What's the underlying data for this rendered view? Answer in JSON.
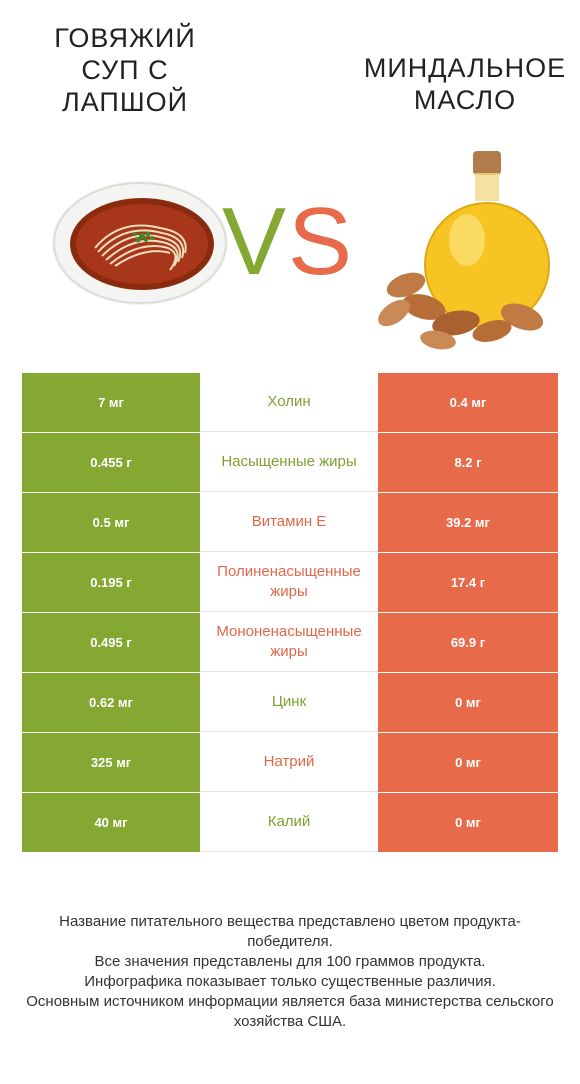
{
  "header": {
    "left_title": "ГОВЯЖИЙ СУП С ЛАПШОЙ",
    "right_title": "МИНДАЛЬНОЕ МАСЛО",
    "vs_v": "V",
    "vs_s": "S"
  },
  "colors": {
    "green": "#84a832",
    "red": "#e76b4a"
  },
  "rows": [
    {
      "left": "7 мг",
      "nutrient": "Холин",
      "right": "0.4 мг",
      "winner": "left"
    },
    {
      "left": "0.455 г",
      "nutrient": "Насыщенные жиры",
      "right": "8.2 г",
      "winner": "left"
    },
    {
      "left": "0.5 мг",
      "nutrient": "Витамин E",
      "right": "39.2 мг",
      "winner": "right"
    },
    {
      "left": "0.195 г",
      "nutrient": "Полиненасыщенные жиры",
      "right": "17.4 г",
      "winner": "right"
    },
    {
      "left": "0.495 г",
      "nutrient": "Мононенасыщенные жиры",
      "right": "69.9 г",
      "winner": "right"
    },
    {
      "left": "0.62 мг",
      "nutrient": "Цинк",
      "right": "0 мг",
      "winner": "left"
    },
    {
      "left": "325 мг",
      "nutrient": "Натрий",
      "right": "0 мг",
      "winner": "right"
    },
    {
      "left": "40 мг",
      "nutrient": "Калий",
      "right": "0 мг",
      "winner": "left"
    }
  ],
  "footer": {
    "line1": "Название питательного вещества представлено цветом продукта-победителя.",
    "line2": "Все значения представлены для 100 граммов продукта.",
    "line3": "Инфографика показывает только существенные различия.",
    "line4": "Основным источником информации является база министерства сельского хозяйства США."
  }
}
